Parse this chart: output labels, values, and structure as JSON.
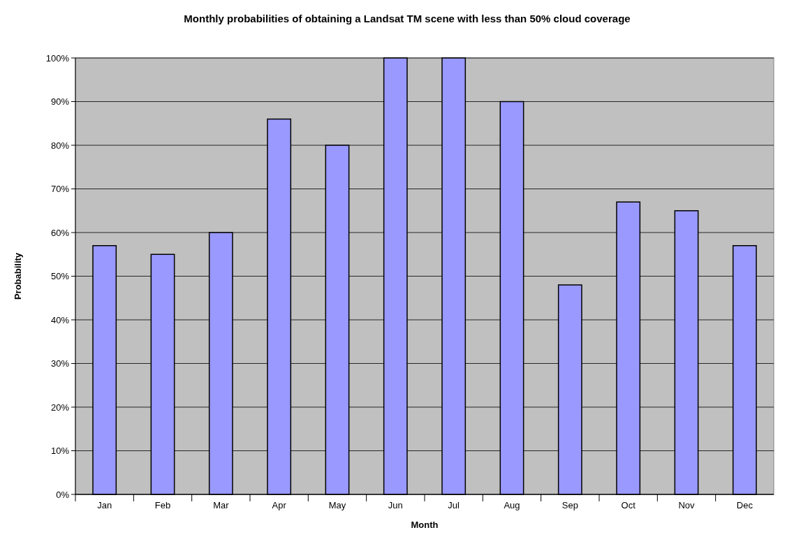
{
  "chart_data": {
    "type": "bar",
    "title": "Monthly probabilities of obtaining a Landsat TM scene with less than 50% cloud coverage",
    "xlabel": "Month",
    "ylabel": "Probability",
    "categories": [
      "Jan",
      "Feb",
      "Mar",
      "Apr",
      "May",
      "Jun",
      "Jul",
      "Aug",
      "Sep",
      "Oct",
      "Nov",
      "Dec"
    ],
    "values": [
      57,
      55,
      60,
      86,
      80,
      100,
      100,
      90,
      48,
      67,
      65,
      57
    ],
    "color": "#9999ff",
    "ylim": [
      0,
      100
    ],
    "yticks": [
      {
        "value": 0,
        "label": "0%"
      },
      {
        "value": 10,
        "label": "10%"
      },
      {
        "value": 20,
        "label": "20%"
      },
      {
        "value": 30,
        "label": "30%"
      },
      {
        "value": 40,
        "label": "40%"
      },
      {
        "value": 50,
        "label": "50%"
      },
      {
        "value": 60,
        "label": "60%"
      },
      {
        "value": 70,
        "label": "70%"
      },
      {
        "value": 80,
        "label": "80%"
      },
      {
        "value": 90,
        "label": "90%"
      },
      {
        "value": 100,
        "label": "100%"
      }
    ],
    "grid": "y"
  }
}
